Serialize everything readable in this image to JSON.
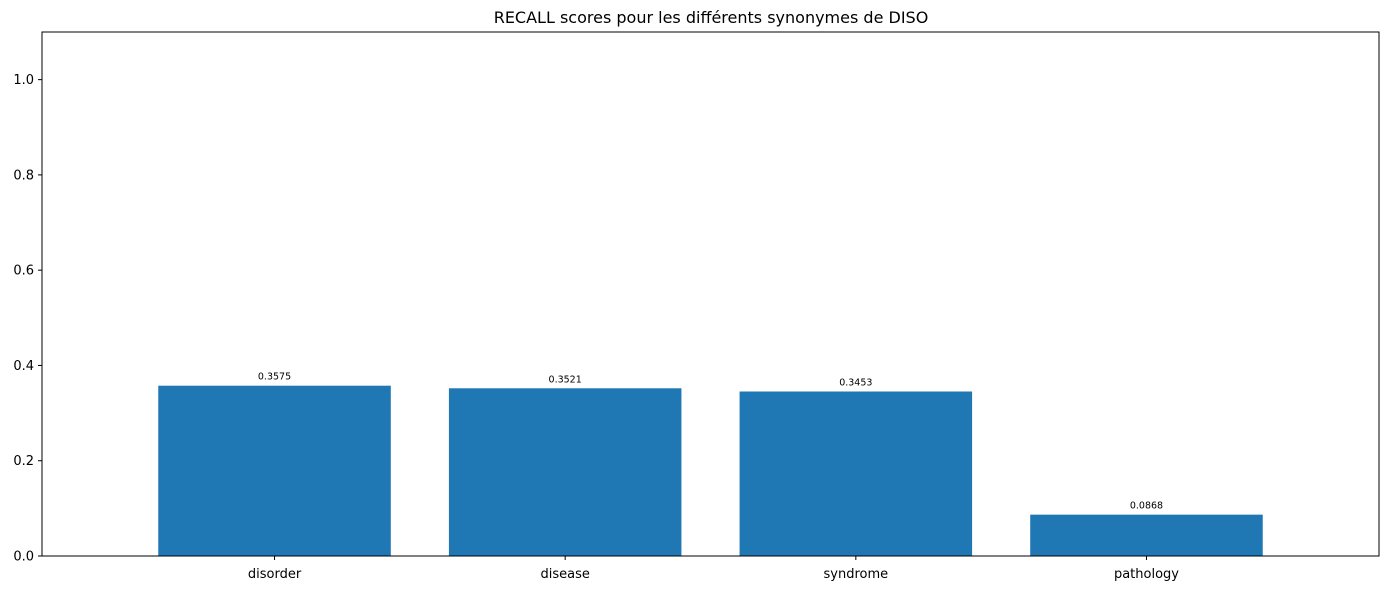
{
  "chart_data": {
    "type": "bar",
    "title": "RECALL scores pour les différents synonymes de DISO",
    "xlabel": "",
    "ylabel": "",
    "categories": [
      "disorder",
      "disease",
      "syndrome",
      "pathology"
    ],
    "values": [
      0.3575,
      0.3521,
      0.3453,
      0.0868
    ],
    "value_labels": [
      "0.3575",
      "0.3521",
      "0.3453",
      "0.0868"
    ],
    "ylim": [
      0,
      1.1
    ],
    "yticks": [
      0.0,
      0.2,
      0.4,
      0.6,
      0.8,
      1.0
    ],
    "ytick_labels": [
      "0.0",
      "0.2",
      "0.4",
      "0.6",
      "0.8",
      "1.0"
    ],
    "grid": false,
    "bar_color": "#1f77b4"
  }
}
